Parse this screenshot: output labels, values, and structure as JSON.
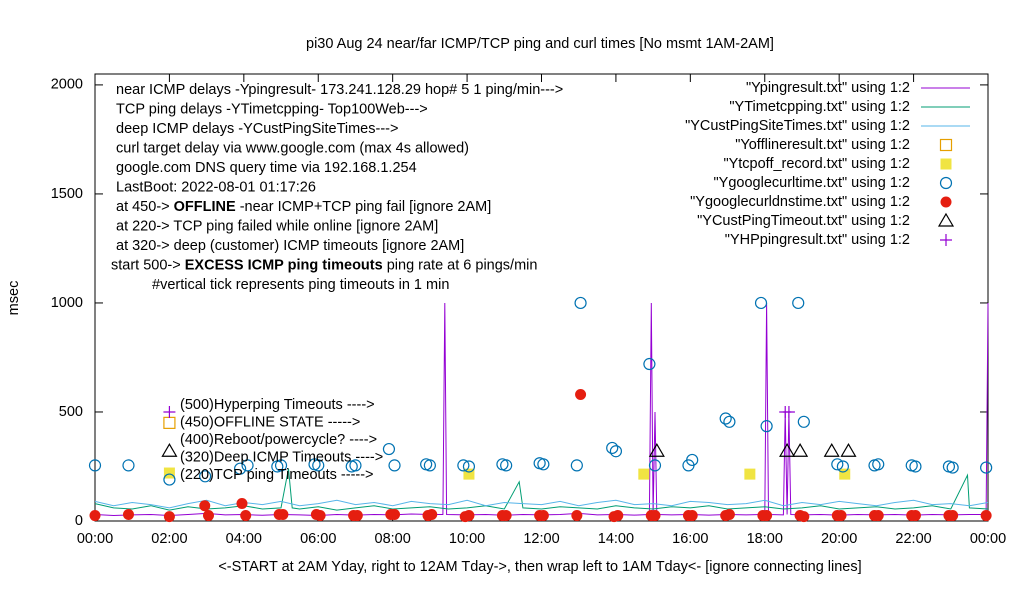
{
  "chart_data": {
    "type": "line",
    "title": "pi30 Aug 24  near/far ICMP/TCP ping and curl times [No msmt 1AM-2AM]",
    "x_label": "<-START at 2AM Yday, right to 12AM Tday->, then wrap left to 1AM Tday<- [ignore connecting lines]",
    "y_label": "msec",
    "xlim": [
      0,
      24
    ],
    "ylim": [
      0,
      2050
    ],
    "xticks": [
      {
        "value": 0,
        "label": "00:00"
      },
      {
        "value": 2,
        "label": "02:00"
      },
      {
        "value": 4,
        "label": "04:00"
      },
      {
        "value": 6,
        "label": "06:00"
      },
      {
        "value": 8,
        "label": "08:00"
      },
      {
        "value": 10,
        "label": "10:00"
      },
      {
        "value": 12,
        "label": "12:00"
      },
      {
        "value": 14,
        "label": "14:00"
      },
      {
        "value": 16,
        "label": "16:00"
      },
      {
        "value": 18,
        "label": "18:00"
      },
      {
        "value": 20,
        "label": "20:00"
      },
      {
        "value": 22,
        "label": "22:00"
      },
      {
        "value": 24,
        "label": "00:00"
      }
    ],
    "yticks": [
      0,
      500,
      1000,
      1500,
      2000
    ],
    "grid": false,
    "legend": "top-right",
    "notes": [
      "near ICMP delays -Ypingresult- 173.241.128.29 hop# 5 1 ping/min--->",
      "TCP ping delays -YTimetcpping- Top100Web--->",
      "deep ICMP delays -YCustPingSiteTimes--->",
      "curl target delay via www.google.com (max 4s allowed)",
      "google.com DNS query time via 192.168.1.254",
      "LastBoot: 2022-08-01 01:17:26",
      {
        "parts": [
          "at 450-> ",
          "OFFLINE",
          " -near ICMP+TCP ping fail [ignore 2AM]"
        ]
      },
      "at 220-> TCP ping failed while online [ignore 2AM]",
      "at 320-> deep (customer) ICMP timeouts [ignore 2AM]",
      {
        "parts": [
          "start 500-> ",
          "EXCESS ICMP ping timeouts",
          "  ping rate at 6 pings/min"
        ]
      },
      "#vertical tick represents ping timeouts in 1 min"
    ],
    "marker_labels": [
      "(500)Hyperping Timeouts ---->",
      "(450)OFFLINE STATE ----->",
      "(400)Reboot/powercycle? ---->",
      "(320)Deep ICMP Timeouts ---->",
      "(220)TCP ping Timeouts ----->"
    ],
    "series": [
      {
        "name": "\"Ypingresult.txt\" using 1:2",
        "style": "line",
        "color": "#9400d3",
        "x": [
          0,
          0.5,
          1,
          1.5,
          2,
          2.5,
          3,
          3.5,
          4,
          4.5,
          5,
          5.5,
          6,
          6.5,
          7,
          7.5,
          8,
          8.5,
          9,
          9.35,
          9.4,
          9.45,
          10,
          10.5,
          11,
          11.5,
          12,
          12.5,
          13,
          13.5,
          14,
          14.5,
          14.9,
          14.95,
          15,
          15.05,
          15.1,
          15.5,
          16,
          16.5,
          17,
          17.5,
          18,
          18.05,
          18.1,
          18.5,
          18.55,
          18.6,
          18.65,
          18.7,
          19,
          19.5,
          20,
          20.5,
          21,
          21.5,
          22,
          22.5,
          23,
          23.5,
          23.95,
          24
        ],
        "values": [
          30,
          25,
          28,
          30,
          25,
          30,
          35,
          28,
          30,
          26,
          30,
          28,
          25,
          30,
          27,
          30,
          28,
          32,
          30,
          30,
          1000,
          30,
          28,
          30,
          26,
          30,
          28,
          30,
          35,
          28,
          30,
          27,
          30,
          1000,
          30,
          500,
          30,
          28,
          30,
          27,
          30,
          28,
          30,
          1000,
          30,
          28,
          500,
          30,
          500,
          30,
          28,
          30,
          27,
          30,
          28,
          30,
          27,
          30,
          28,
          30,
          30,
          1000
        ]
      },
      {
        "name": "\"YTimetcpping.txt\" using 1:2",
        "style": "line",
        "color": "#009e73",
        "x": [
          0,
          0.5,
          1,
          1.5,
          2,
          2.5,
          3,
          3.5,
          4,
          4.5,
          5,
          5.2,
          5.3,
          5.5,
          6,
          6.5,
          7,
          7.5,
          8,
          8.5,
          9,
          9.5,
          10,
          10.5,
          11,
          11.4,
          11.5,
          12,
          12.5,
          13,
          13.5,
          14,
          14.5,
          15,
          15.5,
          16,
          16.5,
          17,
          17.5,
          18,
          18.5,
          19,
          19.5,
          20,
          20.5,
          21,
          21.5,
          22,
          22.5,
          23,
          23.45,
          23.5,
          24
        ],
        "values": [
          80,
          60,
          55,
          70,
          50,
          65,
          55,
          60,
          70,
          55,
          60,
          240,
          60,
          55,
          65,
          50,
          60,
          70,
          55,
          60,
          65,
          55,
          60,
          70,
          55,
          180,
          60,
          55,
          65,
          60,
          55,
          70,
          60,
          55,
          65,
          60,
          70,
          55,
          60,
          65,
          55,
          60,
          70,
          55,
          60,
          65,
          55,
          60,
          70,
          55,
          210,
          60,
          55
        ]
      },
      {
        "name": "\"YCustPingSiteTimes.txt\" using 1:2",
        "style": "line",
        "color": "#56b4e9",
        "x": [
          0,
          0.5,
          1,
          1.5,
          2,
          2.5,
          3,
          3.5,
          4,
          4.5,
          5,
          5.5,
          6,
          6.5,
          7,
          7.5,
          8,
          8.5,
          9,
          9.5,
          10,
          10.5,
          11,
          11.5,
          12,
          12.5,
          13,
          13.5,
          14,
          14.5,
          15,
          15.5,
          16,
          16.5,
          17,
          17.5,
          18,
          18.5,
          19,
          19.5,
          20,
          20.5,
          21,
          21.5,
          22,
          22.5,
          23,
          23.5,
          24
        ],
        "values": [
          90,
          70,
          85,
          75,
          60,
          80,
          95,
          70,
          85,
          75,
          90,
          70,
          80,
          95,
          75,
          85,
          70,
          90,
          80,
          75,
          95,
          70,
          85,
          80,
          75,
          90,
          70,
          85,
          95,
          75,
          80,
          70,
          90,
          85,
          75,
          80,
          95,
          70,
          85,
          75,
          90,
          80,
          70,
          85,
          95,
          75,
          80,
          70,
          85
        ]
      },
      {
        "name": "\"Yofflineresult.txt\" using 1:2",
        "style": "square-open",
        "color": "#e69f00",
        "x": [
          2.0
        ],
        "values": [
          450
        ]
      },
      {
        "name": "\"Ytcpoff_record.txt\" using 1:2",
        "style": "square",
        "color": "#f0e442",
        "x": [
          2.0,
          10.05,
          14.75,
          17.6,
          20.15
        ],
        "values": [
          220,
          215,
          215,
          215,
          215
        ]
      },
      {
        "name": "\"Ygooglecurltime.txt\" using 1:2",
        "style": "circle",
        "color": "#0072b2",
        "x": [
          0,
          0.9,
          2.0,
          2.96,
          3.9,
          4.1,
          4.9,
          5.0,
          5.9,
          6.0,
          6.9,
          7.0,
          7.9,
          8.05,
          8.9,
          9.0,
          9.9,
          10.05,
          10.95,
          11.05,
          11.95,
          12.05,
          12.95,
          13.05,
          13.9,
          14.0,
          14.9,
          15.05,
          15.95,
          16.05,
          16.95,
          17.05,
          17.9,
          18.05,
          18.9,
          19.05,
          19.95,
          20.1,
          20.95,
          21.05,
          21.95,
          22.05,
          22.95,
          23.05,
          23.95
        ],
        "values": [
          255,
          255,
          190,
          205,
          240,
          255,
          250,
          255,
          260,
          255,
          250,
          255,
          330,
          255,
          260,
          255,
          255,
          250,
          260,
          255,
          265,
          260,
          255,
          1000,
          335,
          320,
          720,
          255,
          255,
          280,
          470,
          455,
          1000,
          435,
          1000,
          455,
          260,
          250,
          255,
          260,
          255,
          250,
          250,
          245,
          245
        ]
      },
      {
        "name": "\"Ygooglecurldnstime.txt\" using 1:2",
        "style": "dot",
        "color": "#e51e10",
        "x": [
          0,
          0.9,
          2.0,
          2.95,
          3.05,
          3.95,
          4.05,
          4.95,
          5.05,
          5.95,
          6.05,
          6.95,
          7.05,
          7.95,
          8.05,
          8.95,
          9.05,
          9.95,
          10.05,
          10.95,
          11.05,
          11.95,
          12.05,
          12.95,
          13.05,
          13.95,
          14.05,
          14.95,
          15.05,
          15.95,
          16.05,
          16.95,
          17.05,
          17.95,
          18.05,
          18.95,
          19.05,
          19.95,
          20.05,
          20.95,
          21.05,
          21.95,
          22.05,
          22.95,
          23.05,
          23.95
        ],
        "values": [
          25,
          30,
          20,
          70,
          25,
          80,
          25,
          30,
          30,
          30,
          25,
          25,
          25,
          30,
          30,
          25,
          30,
          20,
          25,
          25,
          25,
          25,
          25,
          25,
          580,
          20,
          25,
          25,
          25,
          25,
          25,
          25,
          30,
          25,
          25,
          25,
          20,
          25,
          25,
          25,
          25,
          25,
          25,
          25,
          25,
          25
        ]
      },
      {
        "name": "\"YCustPingTimeout.txt\" using 1:2",
        "style": "triangle",
        "color": "#000000",
        "x": [
          2.0,
          15.1,
          18.6,
          18.95,
          19.8,
          20.25
        ],
        "values": [
          320,
          320,
          320,
          320,
          320,
          320
        ]
      },
      {
        "name": "\"YHPpingresult.txt\" using 1:2",
        "style": "plus",
        "color": "#9400d3",
        "x": [
          2.0,
          18.55,
          18.65
        ],
        "values": [
          500,
          500,
          500
        ]
      }
    ]
  }
}
